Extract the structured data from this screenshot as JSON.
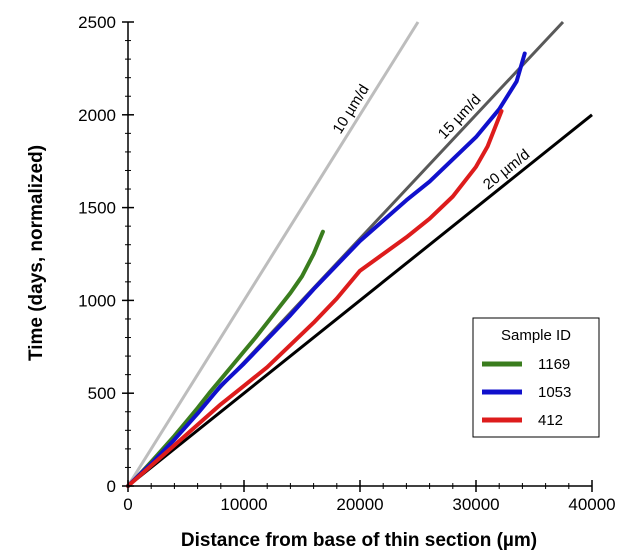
{
  "chart_data": {
    "type": "line",
    "xlabel": "Distance from base of thin section (µm)",
    "ylabel": "Time (days, normalized)",
    "xlim": [
      0,
      40000
    ],
    "ylim": [
      0,
      2500
    ],
    "x_ticks": [
      "0",
      "10000",
      "20000",
      "30000",
      "40000"
    ],
    "y_ticks": [
      "0",
      "500",
      "1000",
      "1500",
      "2000",
      "2500"
    ],
    "grid": false,
    "reference_lines": [
      {
        "label": "10 µm/d",
        "color": "#bdbdbd",
        "points": [
          [
            0,
            0
          ],
          [
            25000,
            2500
          ]
        ]
      },
      {
        "label": "15 µm/d",
        "color": "#595959",
        "points": [
          [
            0,
            0
          ],
          [
            37500,
            2500
          ]
        ]
      },
      {
        "label": "20 µm/d",
        "color": "#000000",
        "points": [
          [
            0,
            0
          ],
          [
            40000,
            2000
          ]
        ]
      }
    ],
    "legend": {
      "title": "Sample ID",
      "position": "bottom-right",
      "entries": [
        {
          "name": "1169",
          "color": "#3a7d1e"
        },
        {
          "name": "1053",
          "color": "#1010cc"
        },
        {
          "name": "412",
          "color": "#dd1c1c"
        }
      ]
    },
    "series": [
      {
        "name": "1169",
        "color": "#3a7d1e",
        "x": [
          0,
          1000,
          2000,
          3000,
          4000,
          5000,
          6000,
          7000,
          8000,
          9000,
          10000,
          11000,
          12000,
          13000,
          14000,
          15000,
          16000,
          16800
        ],
        "y": [
          0,
          60,
          130,
          200,
          270,
          345,
          420,
          500,
          575,
          650,
          725,
          800,
          880,
          960,
          1040,
          1130,
          1250,
          1370
        ]
      },
      {
        "name": "1053",
        "color": "#1010cc",
        "x": [
          0,
          2000,
          4000,
          6000,
          8000,
          10000,
          12000,
          14000,
          16000,
          18000,
          20000,
          22000,
          24000,
          26000,
          28000,
          30000,
          32000,
          33500,
          34200
        ],
        "y": [
          0,
          120,
          250,
          390,
          540,
          660,
          790,
          920,
          1060,
          1190,
          1320,
          1430,
          1540,
          1640,
          1760,
          1880,
          2030,
          2180,
          2330
        ]
      },
      {
        "name": "412",
        "color": "#dd1c1c",
        "x": [
          0,
          2000,
          4000,
          6000,
          8000,
          10000,
          12000,
          14000,
          16000,
          18000,
          20000,
          22000,
          24000,
          26000,
          28000,
          30000,
          31000,
          32200
        ],
        "y": [
          0,
          110,
          220,
          330,
          440,
          540,
          640,
          760,
          880,
          1010,
          1160,
          1250,
          1340,
          1440,
          1560,
          1720,
          1830,
          2020
        ]
      }
    ]
  }
}
